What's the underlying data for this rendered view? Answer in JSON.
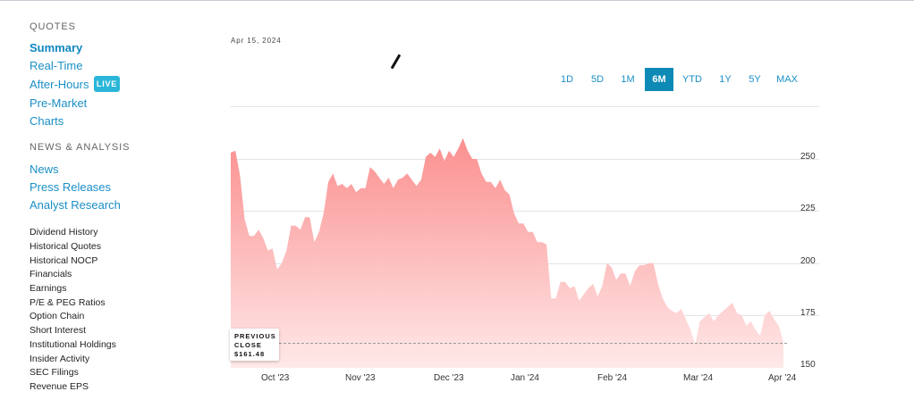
{
  "sidebar": {
    "quotes_heading": "QUOTES",
    "quote_links": [
      "Summary",
      "Real-Time",
      "After-Hours",
      "Pre-Market",
      "Charts"
    ],
    "live_badge": "LIVE",
    "news_heading": "NEWS & ANALYSIS",
    "news_links": [
      "News",
      "Press Releases",
      "Analyst Research"
    ],
    "more_links": [
      "Dividend History",
      "Historical Quotes",
      "Historical NOCP",
      "Financials",
      "Earnings",
      "P/E & PEG Ratios",
      "Option Chain",
      "Short Interest",
      "Institutional Holdings",
      "Insider Activity",
      "SEC Filings",
      "Revenue EPS"
    ]
  },
  "chart_header": {
    "date": "Apr 15, 2024"
  },
  "ranges": [
    "1D",
    "5D",
    "1M",
    "6M",
    "YTD",
    "1Y",
    "5Y",
    "MAX"
  ],
  "active_range": "6M",
  "previous_close": {
    "label_line1": "PREVIOUS",
    "label_line2": "CLOSE",
    "value": "$161.48"
  },
  "colors": {
    "accent": "#0d8ab5",
    "link": "#1a8fc7",
    "area_top": "#fb8f8f",
    "area_bottom": "#ffe7e7"
  },
  "chart_data": {
    "type": "area",
    "x_tick_labels": [
      "Oct '23",
      "Nov '23",
      "Dec '23",
      "Jan '24",
      "Feb '24",
      "Mar '24",
      "Apr '24"
    ],
    "y_tick_labels": [
      "250",
      "225",
      "200",
      "175",
      "150"
    ],
    "y_ticks": [
      250,
      225,
      200,
      175,
      150
    ],
    "ylim": [
      150,
      262
    ],
    "previous_close": 161.48,
    "grid": true,
    "values": [
      253,
      254,
      242,
      221,
      213,
      213,
      216,
      212,
      206,
      207,
      197,
      200,
      206,
      218,
      218,
      216,
      222,
      222,
      210,
      215,
      224,
      239,
      243,
      237,
      238,
      236,
      238,
      234,
      236,
      236,
      246,
      244,
      241,
      238,
      241,
      236,
      240,
      241,
      243,
      240,
      237,
      240,
      251,
      253,
      251,
      255,
      249,
      254,
      251,
      255,
      260,
      254,
      250,
      250,
      243,
      239,
      239,
      236,
      240,
      235,
      233,
      224,
      219,
      219,
      215,
      215,
      210,
      210,
      209,
      183,
      183,
      191,
      191,
      188,
      189,
      182,
      185,
      188,
      190,
      184,
      189,
      200,
      198,
      192,
      195,
      195,
      189,
      196,
      199,
      199,
      200,
      200,
      190,
      183,
      179,
      177,
      176,
      178,
      173,
      168,
      161,
      172,
      174,
      176,
      172,
      175,
      177,
      179,
      181,
      176,
      175,
      170,
      172,
      168,
      165,
      175,
      177,
      173,
      170,
      162
    ]
  }
}
